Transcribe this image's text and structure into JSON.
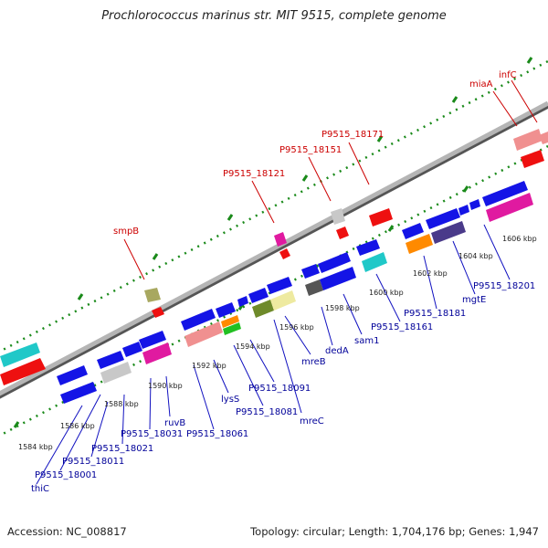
{
  "title": "Prochlorococcus marinus str. MIT 9515, complete genome",
  "footer": {
    "accession": "Accession: NC_008817",
    "summary": "Topology: circular; Length: 1,704,176 bp; Genes: 1,947"
  },
  "colors": {
    "forward_gene": "#1010e0",
    "gene_label_fwd": "#000099",
    "gene_label_rev": "#cc0000",
    "backbone": "#9a9a9a",
    "tick_green": "#1a8a1a"
  },
  "scale_ticks": [
    {
      "label": "1584 kbp"
    },
    {
      "label": "1586 kbp"
    },
    {
      "label": "1588 kbp"
    },
    {
      "label": "1590 kbp"
    },
    {
      "label": "1592 kbp"
    },
    {
      "label": "1594 kbp"
    },
    {
      "label": "1596 kbp"
    },
    {
      "label": "1598 kbp"
    },
    {
      "label": "1600 kbp"
    },
    {
      "label": "1602 kbp"
    },
    {
      "label": "1604 kbp"
    },
    {
      "label": "1606 kbp"
    }
  ],
  "gene_labels_below": [
    "thiC",
    "P9515_18001",
    "P9515_18011",
    "P9515_18021",
    "P9515_18031",
    "ruvB",
    "P9515_18061",
    "lysS",
    "P9515_18081",
    "P9515_18091",
    "mreC",
    "mreB",
    "dedA",
    "sam1",
    "P9515_18161",
    "P9515_18181",
    "mgtE",
    "P9515_18201"
  ],
  "gene_labels_above": [
    "smpB",
    "P9515_18121",
    "P9515_18151",
    "P9515_18171",
    "miaA",
    "infC"
  ]
}
